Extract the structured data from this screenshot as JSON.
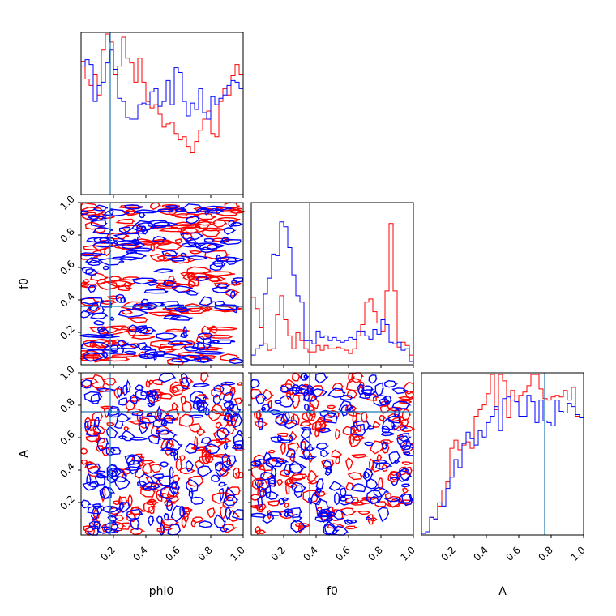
{
  "chart_data": {
    "type": "corner",
    "parameters": [
      "phi0",
      "f0",
      "A"
    ],
    "axis_labels": {
      "phi0": "phi0",
      "f0": "f0",
      "A": "A"
    },
    "range": [
      0,
      1
    ],
    "ticks": [
      {
        "value": 0.2,
        "label": "0.2"
      },
      {
        "value": 0.4,
        "label": "0.4"
      },
      {
        "value": 0.6,
        "label": "0.6"
      },
      {
        "value": 0.8,
        "label": "0.8"
      },
      {
        "value": 1.0,
        "label": "1.0"
      }
    ],
    "truth": {
      "phi0": 0.18,
      "f0": 0.36,
      "A": 0.76
    },
    "colors": {
      "series_a": "#ff0000",
      "series_b": "#0000ff",
      "truth": "#1f77b4",
      "axes": "#000000"
    },
    "series": [
      {
        "color": "#ff0000"
      },
      {
        "color": "#0000ff"
      }
    ],
    "histograms": {
      "phi0": {
        "bins": 40,
        "ymax": 1.0,
        "red": [
          0.83,
          0.72,
          0.68,
          0.75,
          0.62,
          0.9,
          1.0,
          0.95,
          0.75,
          0.8,
          0.98,
          0.85,
          0.82,
          0.7,
          0.85,
          0.7,
          0.58,
          0.54,
          0.56,
          0.5,
          0.42,
          0.44,
          0.45,
          0.38,
          0.34,
          0.36,
          0.3,
          0.26,
          0.33,
          0.4,
          0.47,
          0.52,
          0.38,
          0.36,
          0.58,
          0.66,
          0.62,
          0.74,
          0.81,
          0.75
        ],
        "blue": [
          0.8,
          0.84,
          0.81,
          0.58,
          0.68,
          0.7,
          0.82,
          0.9,
          0.78,
          0.6,
          0.58,
          0.48,
          0.47,
          0.47,
          0.56,
          0.57,
          0.56,
          0.64,
          0.66,
          0.55,
          0.58,
          0.71,
          0.56,
          0.79,
          0.76,
          0.58,
          0.49,
          0.57,
          0.53,
          0.66,
          0.51,
          0.47,
          0.61,
          0.56,
          0.6,
          0.62,
          0.68,
          0.71,
          0.7,
          0.66
        ]
      },
      "f0": {
        "bins": 40,
        "ymax": 1.0,
        "red": [
          0.42,
          0.35,
          0.23,
          0.13,
          0.09,
          0.1,
          0.31,
          0.43,
          0.28,
          0.18,
          0.1,
          0.2,
          0.15,
          0.1,
          0.08,
          0.08,
          0.12,
          0.09,
          0.12,
          0.1,
          0.1,
          0.11,
          0.1,
          0.09,
          0.07,
          0.1,
          0.18,
          0.25,
          0.39,
          0.41,
          0.33,
          0.26,
          0.21,
          0.46,
          0.88,
          0.46,
          0.11,
          0.14,
          0.12,
          0.06
        ],
        "blue": [
          0.06,
          0.1,
          0.12,
          0.44,
          0.54,
          0.69,
          0.68,
          0.89,
          0.86,
          0.73,
          0.56,
          0.43,
          0.39,
          0.15,
          0.15,
          0.13,
          0.21,
          0.17,
          0.18,
          0.15,
          0.17,
          0.15,
          0.14,
          0.15,
          0.17,
          0.16,
          0.21,
          0.21,
          0.18,
          0.16,
          0.22,
          0.19,
          0.28,
          0.25,
          0.14,
          0.13,
          0.14,
          0.09,
          0.1,
          0.02
        ]
      },
      "A": {
        "bins": 40,
        "ymax": 1.0,
        "red": [
          0.01,
          0.02,
          0.11,
          0.1,
          0.18,
          0.28,
          0.33,
          0.54,
          0.59,
          0.53,
          0.56,
          0.58,
          0.54,
          0.74,
          0.78,
          0.81,
          0.88,
          1.0,
          0.78,
          1.0,
          0.96,
          0.73,
          0.9,
          0.83,
          0.87,
          0.89,
          0.93,
          1.0,
          1.0,
          0.91,
          0.85,
          0.84,
          0.86,
          0.87,
          0.86,
          0.9,
          0.84,
          0.92,
          0.74,
          0.73
        ],
        "blue": [
          0.01,
          0.02,
          0.11,
          0.1,
          0.2,
          0.18,
          0.29,
          0.36,
          0.47,
          0.42,
          0.57,
          0.64,
          0.6,
          0.56,
          0.65,
          0.61,
          0.7,
          0.74,
          0.8,
          0.65,
          0.85,
          0.86,
          0.84,
          0.83,
          0.74,
          0.74,
          0.87,
          0.83,
          0.7,
          0.84,
          0.71,
          0.7,
          0.68,
          0.84,
          0.77,
          0.76,
          0.82,
          0.8,
          0.75,
          0.73
        ]
      }
    },
    "pairs": [
      {
        "x": "phi0",
        "y": "f0"
      },
      {
        "x": "phi0",
        "y": "A"
      },
      {
        "x": "f0",
        "y": "A"
      }
    ]
  }
}
